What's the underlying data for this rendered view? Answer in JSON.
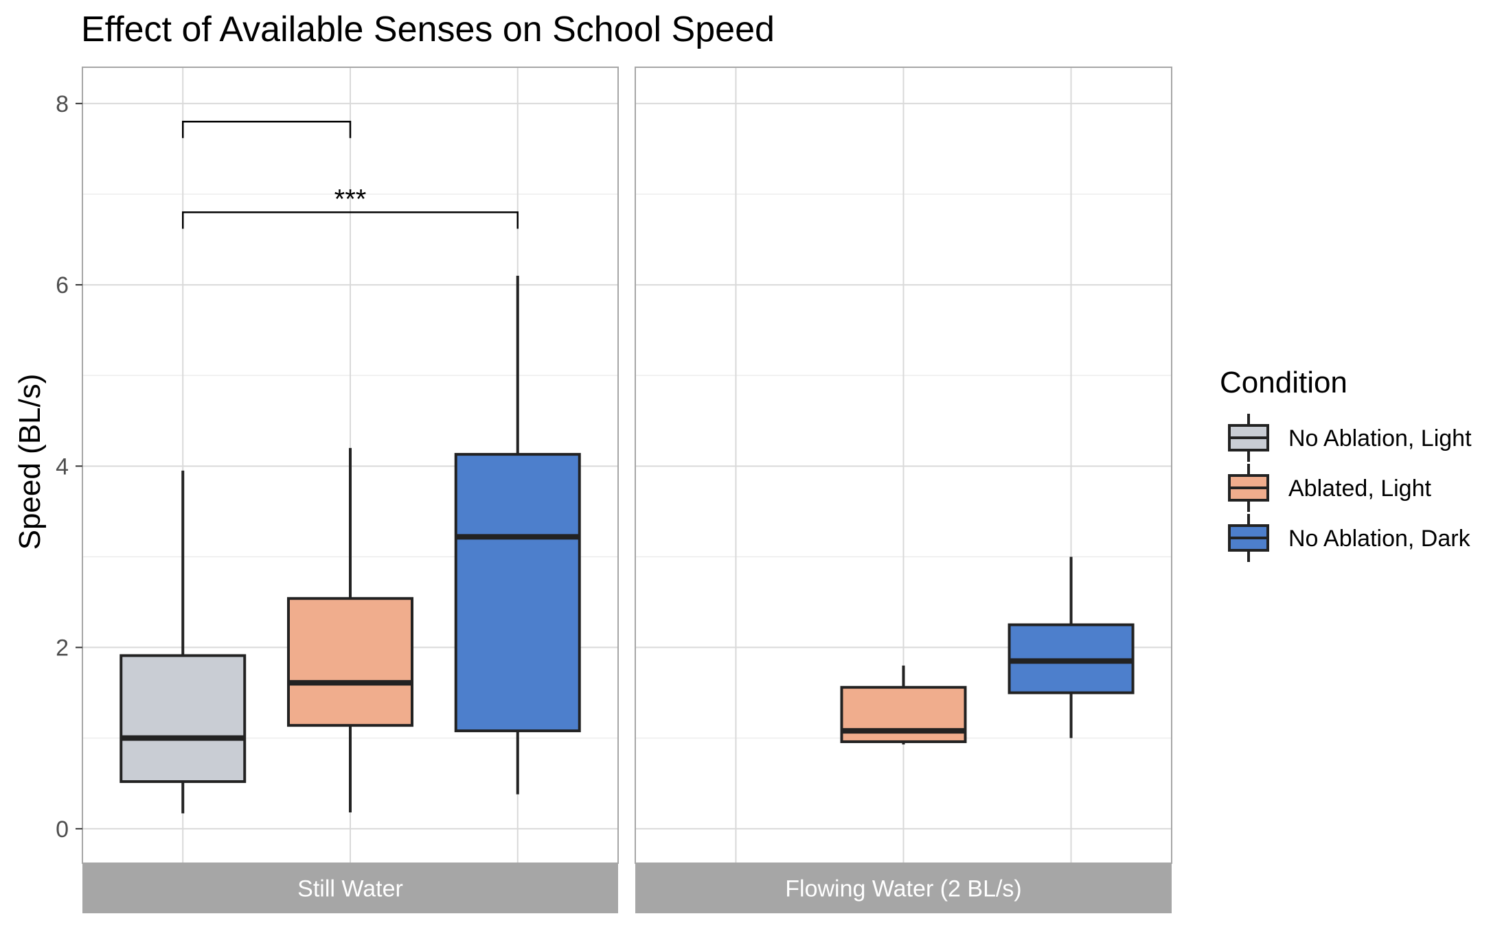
{
  "chart_data": {
    "type": "boxplot",
    "title": "Effect of Available Senses on School Speed",
    "ylabel": "Speed (BL/s)",
    "xlabel": "",
    "ylim": [
      -0.38,
      8.4
    ],
    "yticks": [
      0,
      2,
      4,
      6,
      8
    ],
    "y_minor_gridlines": [
      1,
      3,
      5,
      7
    ],
    "grid": true,
    "legend": {
      "title": "Condition",
      "placement": "right",
      "entries": [
        {
          "name": "No Ablation, Light",
          "color": "#C9CDD4"
        },
        {
          "name": "Ablated, Light",
          "color": "#F0AD8D"
        },
        {
          "name": "No Ablation, Dark",
          "color": "#4D7FCC"
        }
      ]
    },
    "panels": [
      {
        "label": "Still Water",
        "boxes": [
          {
            "group": "No Ablation, Light",
            "slot": 0,
            "min": 0.17,
            "q1": 0.52,
            "median": 1.0,
            "q3": 1.91,
            "max": 3.95
          },
          {
            "group": "Ablated, Light",
            "slot": 1,
            "min": 0.18,
            "q1": 1.14,
            "median": 1.61,
            "q3": 2.54,
            "max": 4.2
          },
          {
            "group": "No Ablation, Dark",
            "slot": 2,
            "min": 0.38,
            "q1": 1.08,
            "median": 3.22,
            "q3": 4.13,
            "max": 6.1
          }
        ],
        "annotations": [
          {
            "from_slot": 0,
            "to_slot": 1,
            "y": 7.8,
            "label": ""
          },
          {
            "from_slot": 0,
            "to_slot": 2,
            "y": 6.8,
            "label": "***"
          }
        ]
      },
      {
        "label": "Flowing Water (2 BL/s)",
        "boxes": [
          {
            "group": "Ablated, Light",
            "slot": 1,
            "min": 0.93,
            "q1": 0.96,
            "median": 1.08,
            "q3": 1.56,
            "max": 1.8
          },
          {
            "group": "No Ablation, Dark",
            "slot": 2,
            "min": 1.0,
            "q1": 1.5,
            "median": 1.85,
            "q3": 2.25,
            "max": 3.0
          }
        ],
        "annotations": []
      }
    ]
  }
}
